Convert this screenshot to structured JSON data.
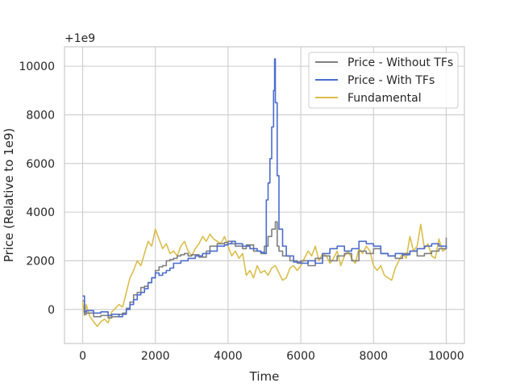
{
  "chart_data": {
    "type": "line",
    "title": "",
    "xlabel": "Time",
    "ylabel": "Price (Relative to 1e9)",
    "offset_label": "+1e9",
    "xlim": [
      -500,
      10500
    ],
    "ylim": [
      -1400,
      10800
    ],
    "x_ticks": [
      0,
      2000,
      4000,
      6000,
      8000,
      10000
    ],
    "y_ticks": [
      0,
      2000,
      4000,
      6000,
      8000,
      10000
    ],
    "grid": true,
    "legend_position": "top-right",
    "series": [
      {
        "name": "Price - Without TFs",
        "color": "#7f7f7f",
        "x": [
          0,
          50,
          100,
          300,
          500,
          700,
          800,
          1000,
          1100,
          1200,
          1300,
          1400,
          1500,
          1600,
          1700,
          1800,
          1900,
          2000,
          2100,
          2200,
          2300,
          2400,
          2500,
          2600,
          2700,
          2800,
          2900,
          3000,
          3200,
          3400,
          3500,
          3700,
          3900,
          4000,
          4100,
          4200,
          4400,
          4500,
          4700,
          4900,
          5000,
          5100,
          5200,
          5300,
          5350,
          5400,
          5500,
          5700,
          5900,
          6000,
          6200,
          6400,
          6600,
          6800,
          7000,
          7200,
          7400,
          7600,
          7800,
          8000,
          8200,
          8400,
          8600,
          8800,
          9000,
          9200,
          9400,
          9600,
          9800,
          10000
        ],
        "values": [
          350,
          -200,
          -150,
          -300,
          -250,
          -350,
          -300,
          -200,
          -150,
          50,
          300,
          600,
          700,
          900,
          950,
          1100,
          1300,
          1600,
          1750,
          1800,
          2000,
          2050,
          2100,
          2200,
          2250,
          2300,
          2200,
          2250,
          2150,
          2400,
          2600,
          2700,
          2750,
          2800,
          2700,
          2600,
          2500,
          2650,
          2400,
          2300,
          2600,
          3000,
          3300,
          3600,
          2600,
          2400,
          2200,
          2000,
          1900,
          2000,
          1800,
          2100,
          2200,
          2000,
          2200,
          2300,
          2000,
          2400,
          2300,
          2500,
          2300,
          2200,
          2100,
          2300,
          2400,
          2200,
          2300,
          2400,
          2500,
          2950
        ]
      },
      {
        "name": "Price - With TFs",
        "color": "#4c6ccc",
        "x": [
          0,
          50,
          100,
          300,
          500,
          700,
          800,
          1000,
          1100,
          1200,
          1300,
          1400,
          1500,
          1600,
          1700,
          1800,
          1900,
          2000,
          2100,
          2200,
          2300,
          2400,
          2500,
          2700,
          2900,
          3100,
          3300,
          3500,
          3700,
          3900,
          4000,
          4100,
          4200,
          4400,
          4600,
          4800,
          4900,
          5000,
          5050,
          5100,
          5150,
          5200,
          5250,
          5280,
          5300,
          5350,
          5400,
          5500,
          5600,
          5800,
          6000,
          6200,
          6400,
          6600,
          6800,
          7000,
          7200,
          7400,
          7600,
          7800,
          8000,
          8200,
          8400,
          8600,
          8800,
          9000,
          9200,
          9400,
          9600,
          9800,
          10000
        ],
        "values": [
          550,
          -100,
          -50,
          -150,
          -100,
          -250,
          -200,
          -300,
          -200,
          0,
          200,
          400,
          600,
          700,
          850,
          1100,
          1300,
          1500,
          1400,
          1500,
          1600,
          1700,
          1900,
          2000,
          2100,
          2200,
          2300,
          2400,
          2600,
          2650,
          2700,
          2800,
          2700,
          2600,
          2500,
          2400,
          2350,
          2300,
          4500,
          5200,
          6200,
          7500,
          9000,
          10300,
          8500,
          5500,
          3300,
          2600,
          2200,
          1950,
          1900,
          2000,
          1900,
          2300,
          2500,
          2600,
          2400,
          2500,
          2800,
          2700,
          2600,
          2300,
          2200,
          2300,
          2250,
          2400,
          2500,
          2600,
          2700,
          2600,
          2500
        ]
      },
      {
        "name": "Fundamental",
        "color": "#dbbe4c",
        "x": [
          0,
          50,
          100,
          150,
          200,
          300,
          400,
          500,
          600,
          700,
          800,
          900,
          1000,
          1100,
          1200,
          1300,
          1400,
          1500,
          1600,
          1700,
          1800,
          1900,
          2000,
          2100,
          2200,
          2300,
          2400,
          2500,
          2600,
          2700,
          2800,
          2900,
          3000,
          3100,
          3200,
          3300,
          3400,
          3500,
          3600,
          3700,
          3800,
          3900,
          4000,
          4100,
          4200,
          4300,
          4400,
          4500,
          4600,
          4700,
          4800,
          4900,
          5000,
          5100,
          5200,
          5300,
          5400,
          5500,
          5600,
          5700,
          5800,
          5900,
          6000,
          6100,
          6200,
          6300,
          6400,
          6500,
          6600,
          6700,
          6800,
          6900,
          7000,
          7100,
          7200,
          7300,
          7400,
          7500,
          7600,
          7700,
          7800,
          7900,
          8000,
          8100,
          8200,
          8300,
          8400,
          8500,
          8600,
          8700,
          8800,
          8900,
          9000,
          9100,
          9200,
          9300,
          9400,
          9500,
          9600,
          9700,
          9800,
          9900,
          10000
        ],
        "values": [
          300,
          -250,
          200,
          -100,
          -300,
          -500,
          -700,
          -500,
          -400,
          -550,
          -100,
          50,
          200,
          100,
          700,
          1300,
          1600,
          2000,
          1800,
          2300,
          2800,
          2600,
          3300,
          2900,
          2500,
          2700,
          2300,
          2400,
          2200,
          2600,
          2800,
          2400,
          2200,
          2500,
          2700,
          3000,
          2800,
          3100,
          2900,
          2800,
          2700,
          3000,
          2600,
          2200,
          2400,
          2100,
          2300,
          1400,
          1600,
          1300,
          1800,
          1500,
          1600,
          1400,
          1700,
          1800,
          1500,
          1200,
          1300,
          1700,
          1800,
          1600,
          1800,
          2100,
          2400,
          2200,
          2600,
          2000,
          2300,
          2200,
          1900,
          2100,
          2400,
          1800,
          2200,
          2400,
          2100,
          1900,
          2500,
          2300,
          2600,
          2400,
          1800,
          1600,
          1800,
          1400,
          1300,
          1200,
          1700,
          2000,
          2300,
          2100,
          3000,
          2400,
          2600,
          3500,
          2500,
          2700,
          2200,
          2100,
          2900,
          2400,
          2500
        ]
      }
    ]
  }
}
